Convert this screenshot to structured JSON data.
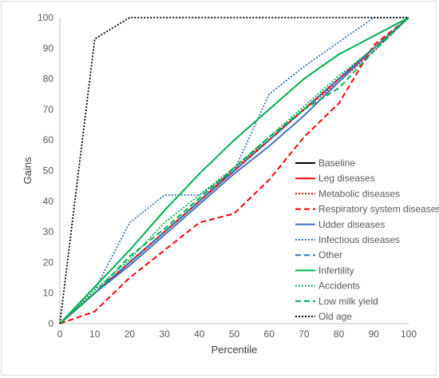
{
  "chart_data": {
    "type": "line",
    "title": "",
    "xlabel": "Percentile",
    "ylabel": "Gains",
    "xlim": [
      0,
      100
    ],
    "ylim": [
      0,
      100
    ],
    "xticks": [
      0,
      10,
      20,
      30,
      40,
      50,
      60,
      70,
      80,
      90,
      100
    ],
    "yticks": [
      0,
      10,
      20,
      30,
      40,
      50,
      60,
      70,
      80,
      90,
      100
    ],
    "grid": false,
    "legend_position": "right",
    "x": [
      0,
      10,
      20,
      30,
      40,
      50,
      60,
      70,
      80,
      90,
      100
    ],
    "series": [
      {
        "name": "Baseline",
        "color": "#000000",
        "style": "solid",
        "values": [
          0,
          10,
          20,
          30,
          40,
          50,
          60,
          70,
          80,
          90,
          100
        ]
      },
      {
        "name": "Leg diseases",
        "color": "#ff0000",
        "style": "solid",
        "values": [
          0,
          10,
          20,
          30,
          40,
          50,
          60,
          70,
          80,
          90,
          100
        ]
      },
      {
        "name": "Metabolic diseases",
        "color": "#ff0000",
        "style": "dotted",
        "values": [
          0,
          10,
          20,
          30,
          40,
          51,
          60,
          70,
          79,
          89,
          100
        ]
      },
      {
        "name": "Respiratory system diseases",
        "color": "#ff0000",
        "style": "dashed",
        "values": [
          0,
          4,
          15,
          24,
          33,
          36,
          47,
          61,
          72,
          91,
          100
        ]
      },
      {
        "name": "Udder diseases",
        "color": "#4472c4",
        "style": "solid",
        "values": [
          0,
          10,
          19,
          29,
          39,
          49,
          58,
          68,
          79,
          90,
          100
        ]
      },
      {
        "name": "Infectious diseases",
        "color": "#2e75b6",
        "style": "dotted",
        "values": [
          0,
          11,
          33,
          42,
          42,
          50,
          75,
          84,
          92,
          100,
          100
        ]
      },
      {
        "name": "Other",
        "color": "#2e75b6",
        "style": "dashed",
        "values": [
          0,
          10,
          20,
          30,
          40,
          50,
          60,
          70,
          80,
          90,
          100
        ]
      },
      {
        "name": "Infertility",
        "color": "#00b050",
        "style": "solid",
        "values": [
          0,
          12,
          24,
          37,
          49,
          60,
          70,
          80,
          88,
          94,
          100
        ]
      },
      {
        "name": "Accidents",
        "color": "#00b050",
        "style": "dotted",
        "values": [
          0,
          11,
          21,
          33,
          42,
          51,
          61,
          71,
          81,
          90,
          100
        ]
      },
      {
        "name": "Low milk yield",
        "color": "#00b050",
        "style": "dashed",
        "values": [
          0,
          10,
          22,
          31,
          41,
          51,
          61,
          70,
          77,
          89,
          100
        ]
      },
      {
        "name": "Old age",
        "color": "#000000",
        "style": "dotted",
        "values": [
          0,
          93,
          100,
          100,
          100,
          100,
          100,
          100,
          100,
          100,
          100
        ]
      }
    ]
  }
}
